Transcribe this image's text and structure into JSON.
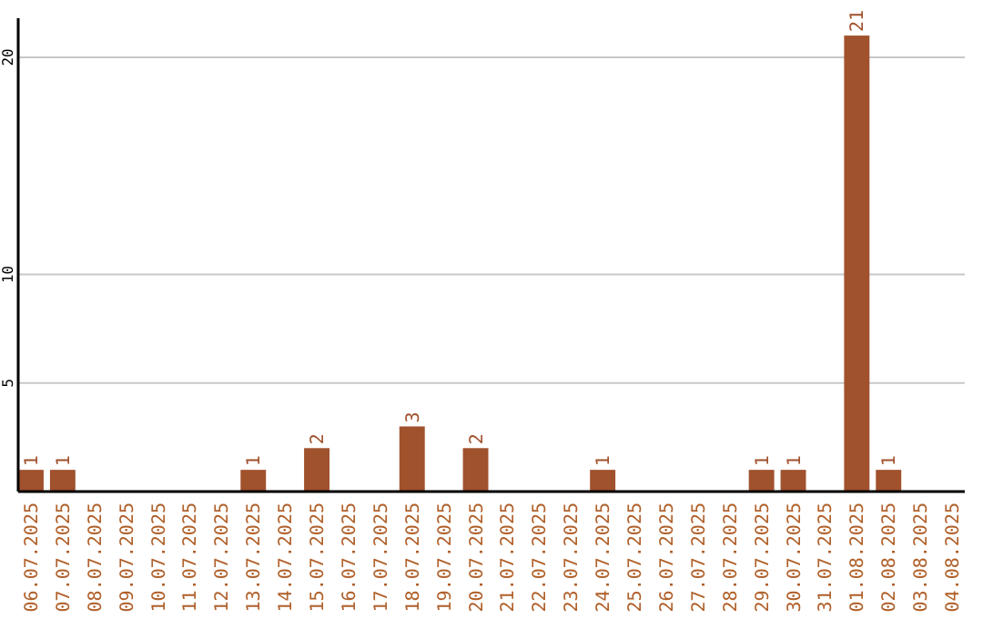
{
  "chart_data": {
    "type": "bar",
    "categories": [
      "06.07.2025",
      "07.07.2025",
      "08.07.2025",
      "09.07.2025",
      "10.07.2025",
      "11.07.2025",
      "12.07.2025",
      "13.07.2025",
      "14.07.2025",
      "15.07.2025",
      "16.07.2025",
      "17.07.2025",
      "18.07.2025",
      "19.07.2025",
      "20.07.2025",
      "21.07.2025",
      "22.07.2025",
      "23.07.2025",
      "24.07.2025",
      "25.07.2025",
      "26.07.2025",
      "27.07.2025",
      "28.07.2025",
      "29.07.2025",
      "30.07.2025",
      "31.07.2025",
      "01.08.2025",
      "02.08.2025",
      "03.08.2025",
      "04.08.2025"
    ],
    "values": [
      1,
      1,
      0,
      0,
      0,
      0,
      0,
      1,
      0,
      2,
      0,
      0,
      3,
      0,
      2,
      0,
      0,
      0,
      1,
      0,
      0,
      0,
      0,
      1,
      1,
      0,
      21,
      1,
      0,
      0
    ],
    "value_labels": [
      "1",
      "1",
      null,
      null,
      null,
      null,
      null,
      "1",
      null,
      "2",
      null,
      null,
      "3",
      null,
      "2",
      null,
      null,
      null,
      "1",
      null,
      null,
      null,
      null,
      "1",
      "1",
      null,
      "21",
      "1",
      null,
      null
    ],
    "color": "#a0522d",
    "ylim": [
      0,
      21.8
    ],
    "yticks": [
      5,
      10,
      20
    ],
    "grid": "y"
  }
}
